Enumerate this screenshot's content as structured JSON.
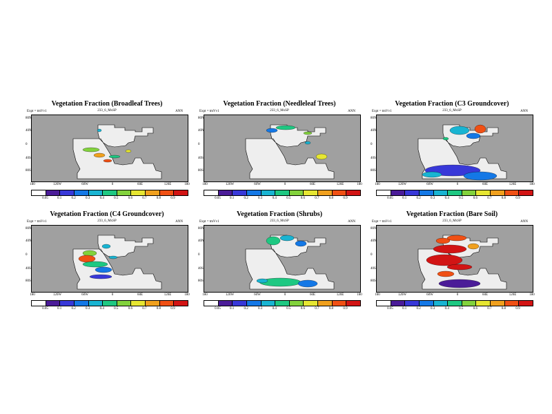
{
  "colors": {
    "ocean": "#a0a0a0",
    "land_missing": "#eeeeee",
    "scale": [
      "#ffffff",
      "#4b1c98",
      "#3838d8",
      "#1478e6",
      "#19b4d2",
      "#1ec882",
      "#82d23c",
      "#e6e632",
      "#f0a01e",
      "#f05014",
      "#d21414"
    ]
  },
  "colorbar_labels": [
    "0.05",
    "0.1",
    "0.2",
    "0.3",
    "0.4",
    "0.5",
    "0.6",
    "0.7",
    "0.8",
    "0.9"
  ],
  "panels": [
    {
      "title": "Vegetation Fraction (Broadleaf Trees)",
      "subtitle": "233_6_MxSP",
      "expt": "Expt = tmVv1",
      "period": "ANN",
      "ylabels": [
        "80N",
        "40N",
        "0",
        "40S",
        "80S"
      ],
      "xlabels": [
        "180",
        "120W",
        "60W",
        "0",
        "60E",
        "120E",
        "180"
      ]
    },
    {
      "title": "Vegetation Fraction (Needleleaf Trees)",
      "subtitle": "233_6_MxSP",
      "expt": "Expt = tmVv1",
      "period": "ANN",
      "ylabels": [
        "80N",
        "40N",
        "0",
        "40S",
        "80S"
      ],
      "xlabels": [
        "180",
        "120W",
        "60W",
        "0",
        "60E",
        "120E",
        "180"
      ]
    },
    {
      "title": "Vegetation Fraction (C3 Groundcover)",
      "subtitle": "233_6_MxSP",
      "expt": "Expt = tmVv1",
      "period": "ANN",
      "ylabels": [
        "80N",
        "40N",
        "0",
        "40S",
        "80S"
      ],
      "xlabels": [
        "180",
        "120W",
        "60W",
        "0",
        "60E",
        "120E",
        "180"
      ]
    },
    {
      "title": "Vegetation Fraction (C4 Groundcover)",
      "subtitle": "233_6_MxSP",
      "expt": "Expt = tmVv1",
      "period": "ANN",
      "ylabels": [
        "80N",
        "40N",
        "0",
        "40S",
        "80S"
      ],
      "xlabels": [
        "180",
        "120W",
        "60W",
        "0",
        "60E",
        "120E",
        "180"
      ]
    },
    {
      "title": "Vegetation Fraction (Shrubs)",
      "subtitle": "233_6_MxSP",
      "expt": "Expt = tmVv1",
      "period": "ANN",
      "ylabels": [
        "80N",
        "40N",
        "0",
        "40S",
        "80S"
      ],
      "xlabels": [
        "180",
        "120W",
        "60W",
        "0",
        "60E",
        "120E",
        "180"
      ]
    },
    {
      "title": "Vegetation Fraction (Bare Soil)",
      "subtitle": "233_6_MxSP",
      "expt": "Expt = tmVv1",
      "period": "ANN",
      "ylabels": [
        "80N",
        "40N",
        "0",
        "40S",
        "80S"
      ],
      "xlabels": [
        "180",
        "120W",
        "60W",
        "0",
        "60E",
        "120E",
        "180"
      ]
    }
  ],
  "chart_data": [
    {
      "type": "heatmap",
      "title": "Vegetation Fraction (Broadleaf Trees)",
      "subtitle": "233_6_MxSP",
      "xlim": [
        -180,
        180
      ],
      "ylim": [
        -90,
        90
      ],
      "colorbar": [
        0.05,
        0.1,
        0.2,
        0.3,
        0.4,
        0.5,
        0.6,
        0.7,
        0.8,
        0.9
      ],
      "patches": [
        {
          "lon": -20,
          "lat": 5,
          "v": 0.6
        },
        {
          "lon": 30,
          "lat": -5,
          "v": 0.7
        },
        {
          "lon": 60,
          "lat": -10,
          "v": 0.8
        },
        {
          "lon": 80,
          "lat": 5,
          "v": 0.5
        }
      ]
    },
    {
      "type": "heatmap",
      "title": "Vegetation Fraction (Needleleaf Trees)",
      "subtitle": "233_6_MxSP",
      "xlim": [
        -180,
        180
      ],
      "ylim": [
        -90,
        90
      ],
      "colorbar": [
        0.05,
        0.1,
        0.2,
        0.3,
        0.4,
        0.5,
        0.6,
        0.7,
        0.8,
        0.9
      ],
      "patches": [
        {
          "lon": 20,
          "lat": 55,
          "v": 0.4
        },
        {
          "lon": 90,
          "lat": 60,
          "v": 0.5
        },
        {
          "lon": 120,
          "lat": -40,
          "v": 0.6
        }
      ]
    },
    {
      "type": "heatmap",
      "title": "Vegetation Fraction (C3 Groundcover)",
      "subtitle": "233_6_MxSP",
      "xlim": [
        -180,
        180
      ],
      "ylim": [
        -90,
        90
      ],
      "colorbar": [
        0.05,
        0.1,
        0.2,
        0.3,
        0.4,
        0.5,
        0.6,
        0.7,
        0.8,
        0.9
      ],
      "patches": [
        {
          "lon": 100,
          "lat": 60,
          "v": 0.5
        },
        {
          "lon": 30,
          "lat": -60,
          "v": 0.3
        },
        {
          "lon": 100,
          "lat": -60,
          "v": 0.4
        }
      ]
    },
    {
      "type": "heatmap",
      "title": "Vegetation Fraction (C4 Groundcover)",
      "subtitle": "233_6_MxSP",
      "xlim": [
        -180,
        180
      ],
      "ylim": [
        -90,
        90
      ],
      "colorbar": [
        0.05,
        0.1,
        0.2,
        0.3,
        0.4,
        0.5,
        0.6,
        0.7,
        0.8,
        0.9
      ],
      "patches": [
        {
          "lon": -20,
          "lat": 5,
          "v": 0.8
        },
        {
          "lon": 20,
          "lat": 20,
          "v": 0.4
        },
        {
          "lon": 60,
          "lat": -10,
          "v": 0.3
        }
      ]
    },
    {
      "type": "heatmap",
      "title": "Vegetation Fraction (Shrubs)",
      "subtitle": "233_6_MxSP",
      "xlim": [
        -180,
        180
      ],
      "ylim": [
        -90,
        90
      ],
      "colorbar": [
        0.05,
        0.1,
        0.2,
        0.3,
        0.4,
        0.5,
        0.6,
        0.7,
        0.8,
        0.9
      ],
      "patches": [
        {
          "lon": 20,
          "lat": 60,
          "v": 0.5
        },
        {
          "lon": 60,
          "lat": -65,
          "v": 0.5
        }
      ]
    },
    {
      "type": "heatmap",
      "title": "Vegetation Fraction (Bare Soil)",
      "subtitle": "233_6_MxSP",
      "xlim": [
        -180,
        180
      ],
      "ylim": [
        -90,
        90
      ],
      "colorbar": [
        0.05,
        0.1,
        0.2,
        0.3,
        0.4,
        0.5,
        0.6,
        0.7,
        0.8,
        0.9
      ],
      "patches": [
        {
          "lon": 0,
          "lat": 50,
          "v": 0.9
        },
        {
          "lon": 20,
          "lat": 0,
          "v": 0.9
        },
        {
          "lon": 80,
          "lat": 10,
          "v": 0.8
        }
      ]
    }
  ]
}
